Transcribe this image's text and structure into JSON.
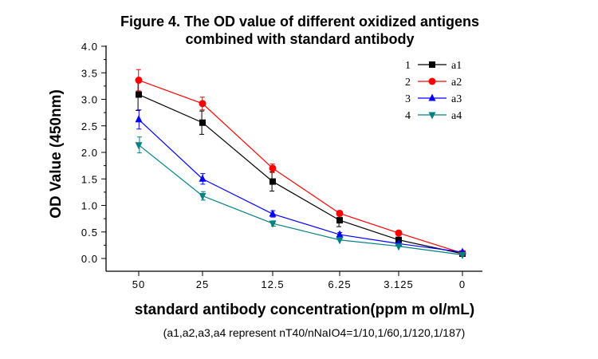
{
  "chart_data": {
    "type": "line",
    "title": [
      "Figure 4. The OD value of different oxidized antigens",
      "combined with standard antibody"
    ],
    "xlabel": "standard antibody concentration(ppm m ol/mL)",
    "ylabel": "OD Value (450nm)",
    "note": "(a1,a2,a3,a4 represent nT40/nNaIO4=1/10,1/60,1/120,1/187)",
    "categories": [
      "50",
      "25",
      "12.5",
      "6.25",
      "3.125",
      "0"
    ],
    "ylim": [
      0,
      4.0
    ],
    "yticks": [
      "0.0",
      "0.5",
      "1.0",
      "1.5",
      "2.0",
      "2.5",
      "3.0",
      "3.5",
      "4.0"
    ],
    "grid": false,
    "legend_position": "top-right",
    "series": [
      {
        "number": "1",
        "name": "a1",
        "color": "#000000",
        "marker": "square",
        "values": [
          3.09,
          2.56,
          1.45,
          0.72,
          0.35,
          0.09
        ],
        "errors": [
          0.3,
          0.22,
          0.18,
          0.12,
          0.05,
          0.02
        ]
      },
      {
        "number": "2",
        "name": "a2",
        "color": "#ff0000",
        "marker": "circle",
        "values": [
          3.36,
          2.92,
          1.7,
          0.85,
          0.48,
          0.1
        ],
        "errors": [
          0.2,
          0.12,
          0.08,
          0.05,
          0.04,
          0.02
        ]
      },
      {
        "number": "3",
        "name": "a3",
        "color": "#0000ff",
        "marker": "triangle-up",
        "values": [
          2.62,
          1.5,
          0.84,
          0.45,
          0.28,
          0.12
        ],
        "errors": [
          0.18,
          0.1,
          0.06,
          0.04,
          0.03,
          0.02
        ]
      },
      {
        "number": "4",
        "name": "a4",
        "color": "#008080",
        "marker": "triangle-down",
        "values": [
          2.14,
          1.18,
          0.66,
          0.35,
          0.23,
          0.07
        ],
        "errors": [
          0.15,
          0.08,
          0.05,
          0.03,
          0.03,
          0.02
        ]
      }
    ]
  }
}
